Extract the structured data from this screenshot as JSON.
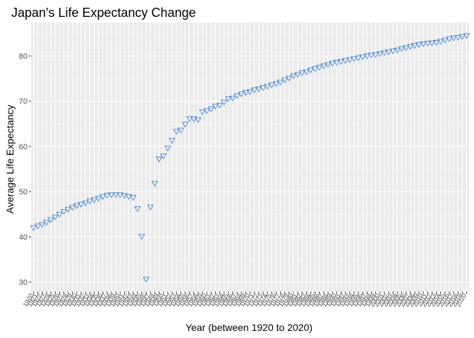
{
  "chart_data": {
    "type": "scatter",
    "title": "Japan's Life Expectancy Change",
    "xlabel": "Year (between 1920 to 2020)",
    "ylabel": "Average Life Expectancy",
    "x": [
      1920,
      1921,
      1922,
      1923,
      1924,
      1925,
      1926,
      1927,
      1928,
      1929,
      1930,
      1931,
      1932,
      1933,
      1934,
      1935,
      1936,
      1937,
      1938,
      1939,
      1940,
      1941,
      1942,
      1943,
      1944,
      1945,
      1946,
      1947,
      1948,
      1949,
      1950,
      1951,
      1952,
      1953,
      1954,
      1955,
      1956,
      1957,
      1958,
      1959,
      1960,
      1961,
      1962,
      1963,
      1964,
      1965,
      1966,
      1967,
      1968,
      1969,
      1970,
      1971,
      1972,
      1973,
      1974,
      1975,
      1976,
      1977,
      1978,
      1979,
      1980,
      1981,
      1982,
      1983,
      1984,
      1985,
      1986,
      1987,
      1988,
      1989,
      1990,
      1991,
      1992,
      1993,
      1994,
      1995,
      1996,
      1997,
      1998,
      1999,
      2000,
      2001,
      2002,
      2003,
      2004,
      2005,
      2006,
      2007,
      2008,
      2009,
      2010,
      2011,
      2012,
      2013,
      2014,
      2015,
      2016,
      2017,
      2018,
      2019,
      2020
    ],
    "y": [
      42.0,
      42.4,
      42.7,
      43.2,
      43.8,
      44.4,
      45.0,
      45.6,
      46.1,
      46.5,
      46.9,
      47.2,
      47.5,
      47.9,
      48.2,
      48.5,
      48.9,
      49.2,
      49.3,
      49.3,
      49.3,
      49.1,
      48.9,
      48.7,
      46.2,
      40.1,
      30.6,
      46.6,
      51.8,
      57.2,
      57.9,
      59.6,
      61.3,
      63.3,
      63.6,
      64.9,
      66.1,
      66.1,
      65.9,
      67.6,
      67.9,
      68.3,
      68.9,
      69.1,
      69.8,
      70.5,
      70.7,
      71.2,
      71.6,
      71.9,
      72.1,
      72.5,
      72.7,
      73.0,
      73.3,
      73.6,
      73.9,
      74.2,
      74.7,
      75.1,
      75.6,
      75.9,
      76.3,
      76.5,
      76.9,
      77.2,
      77.5,
      77.8,
      78.1,
      78.4,
      78.6,
      78.8,
      79.0,
      79.2,
      79.4,
      79.6,
      79.8,
      80.0,
      80.2,
      80.3,
      80.5,
      80.7,
      80.9,
      81.1,
      81.3,
      81.6,
      81.8,
      82.1,
      82.3,
      82.5,
      82.7,
      82.8,
      82.9,
      83.0,
      83.2,
      83.5,
      83.8,
      84.0,
      84.1,
      84.3,
      84.5
    ],
    "y_ticks": [
      "30",
      "40",
      "50",
      "60",
      "70",
      "80"
    ],
    "x_tick_labels": [
      "1920",
      "1921",
      "1922",
      "1923",
      "1924",
      "1925",
      "1926",
      "1927",
      "1928",
      "1929",
      "1930",
      "1931",
      "1932",
      "1933",
      "1934",
      "1935",
      "1936",
      "1937",
      "1938",
      "1939",
      "1940",
      "1941",
      "1942",
      "1943",
      "1944",
      "1945",
      "1946",
      "1947",
      "1948",
      "1949",
      "1950",
      "1951",
      "1952",
      "1953",
      "1954",
      "1955",
      "1956",
      "1957",
      "1958",
      "1959",
      "1960",
      "1961",
      "1962",
      "1963",
      "1964",
      "1965",
      "1966",
      "1967",
      "1968",
      "1969",
      "1970",
      "1971",
      "1972",
      "1973",
      "1974",
      "1975",
      "1976",
      "1977",
      "1978",
      "1979",
      "1980",
      "1981",
      "1982",
      "1983",
      "1984",
      "1985",
      "1986",
      "1987",
      "1988",
      "1989",
      "1990",
      "1991",
      "1992",
      "1993",
      "1994",
      "1995",
      "1996",
      "1997",
      "1998",
      "1999",
      "2000",
      "2001",
      "2002",
      "2003",
      "2004",
      "2005",
      "2006",
      "2007",
      "2008",
      "2009",
      "2010",
      "2011",
      "2012",
      "2013",
      "2014",
      "2015",
      "2016",
      "2017",
      "2018",
      "2019",
      "2020"
    ],
    "xlim": [
      1920,
      2020
    ],
    "ylim": [
      27.9,
      87.4
    ],
    "grid": true,
    "legend": "none",
    "marker": "triangle-down-open",
    "colors": {
      "panel": "#ebebeb",
      "grid_major": "#ffffff",
      "grid_minor": "#f5f5f5",
      "marker": "#4a86d4",
      "tick_label": "#4d4d4d",
      "tick_mark": "#333333"
    }
  }
}
